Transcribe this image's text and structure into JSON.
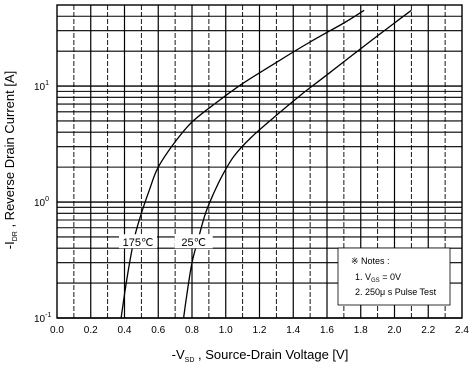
{
  "chart_data": {
    "type": "line",
    "xlabel_prefix": "-V",
    "xlabel_sub": "SD",
    "xlabel_rest": " , Source-Drain Voltage  [V]",
    "ylabel_prefix": "-I",
    "ylabel_sub": "DR",
    "ylabel_rest": " , Reverse Drain Current  [A]",
    "xlim": [
      0.0,
      2.4
    ],
    "ylim": [
      0.1,
      50
    ],
    "yscale": "log",
    "grid": true,
    "x_ticks": [
      "0.0",
      "0.2",
      "0.4",
      "0.6",
      "0.8",
      "1.0",
      "1.2",
      "1.4",
      "1.6",
      "1.8",
      "2.0",
      "2.2",
      "2.4"
    ],
    "y_ticks": [
      {
        "base": "10",
        "exp": "-1",
        "value": 0.1
      },
      {
        "base": "10",
        "exp": "0",
        "value": 1
      },
      {
        "base": "10",
        "exp": "1",
        "value": 10
      }
    ],
    "series": [
      {
        "name": "175℃",
        "x": [
          0.38,
          0.4,
          0.43,
          0.46,
          0.5,
          0.55,
          0.6,
          0.7,
          0.8,
          0.95,
          1.1,
          1.3,
          1.5,
          1.7,
          1.82
        ],
        "y": [
          0.1,
          0.16,
          0.3,
          0.5,
          0.8,
          1.3,
          2.0,
          3.3,
          4.9,
          7.3,
          10.5,
          16,
          24,
          35,
          45
        ]
      },
      {
        "name": "25℃",
        "x": [
          0.75,
          0.77,
          0.8,
          0.84,
          0.88,
          0.93,
          0.98,
          1.05,
          1.15,
          1.3,
          1.45,
          1.6,
          1.8,
          2.0,
          2.1
        ],
        "y": [
          0.1,
          0.16,
          0.3,
          0.5,
          0.8,
          1.2,
          1.7,
          2.5,
          3.6,
          5.6,
          8.5,
          12.5,
          21,
          35,
          45
        ]
      }
    ],
    "curve_labels": [
      {
        "series": "175℃",
        "text": "175℃",
        "x": 0.48,
        "y": 0.45
      },
      {
        "series": "25℃",
        "text": "25℃",
        "x": 0.81,
        "y": 0.45
      }
    ],
    "notes": {
      "title": "※ Notes :",
      "line1_prefix": "1. V",
      "line1_sub": "GS",
      "line1_rest": " = 0V",
      "line2": "2. 250μ s Pulse Test"
    }
  }
}
